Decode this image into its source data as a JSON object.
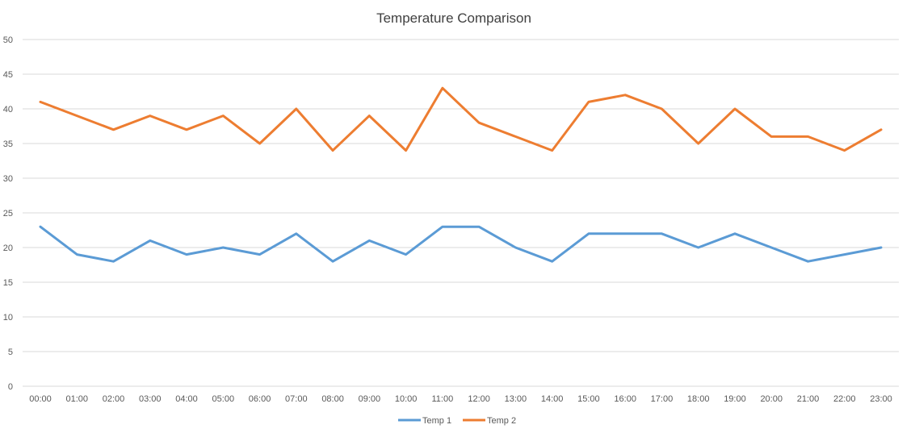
{
  "chart_data": {
    "type": "line",
    "title": "Temperature Comparison",
    "xlabel": "",
    "ylabel": "",
    "categories": [
      "00:00",
      "01:00",
      "02:00",
      "03:00",
      "04:00",
      "05:00",
      "06:00",
      "07:00",
      "08:00",
      "09:00",
      "10:00",
      "11:00",
      "12:00",
      "13:00",
      "14:00",
      "15:00",
      "16:00",
      "17:00",
      "18:00",
      "19:00",
      "20:00",
      "21:00",
      "22:00",
      "23:00"
    ],
    "series": [
      {
        "name": "Temp 1",
        "color": "#5b9bd5",
        "values": [
          23,
          19,
          18,
          21,
          19,
          20,
          19,
          22,
          18,
          21,
          19,
          23,
          23,
          20,
          18,
          22,
          22,
          22,
          20,
          22,
          20,
          18,
          19,
          20
        ]
      },
      {
        "name": "Temp 2",
        "color": "#ed7d31",
        "values": [
          41,
          39,
          37,
          39,
          37,
          39,
          35,
          40,
          34,
          39,
          34,
          43,
          38,
          36,
          34,
          41,
          42,
          40,
          35,
          40,
          36,
          36,
          34,
          37
        ]
      }
    ],
    "ylim": [
      0,
      50
    ],
    "yticks": [
      0,
      5,
      10,
      15,
      20,
      25,
      30,
      35,
      40,
      45,
      50
    ],
    "grid": true,
    "legend": "bottom-center"
  }
}
